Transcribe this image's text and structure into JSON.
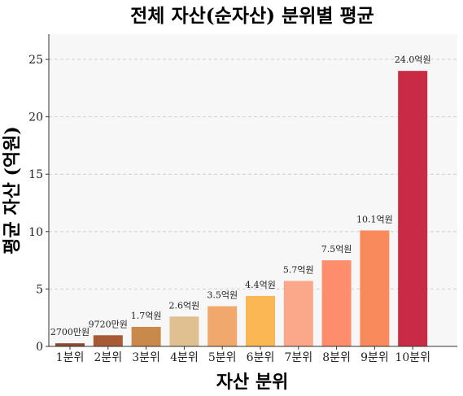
{
  "chart_data": {
    "type": "bar",
    "title": "전체 자산(순자산) 분위별 평균",
    "xlabel": "자산 분위",
    "ylabel": "평균 자산 (억원)",
    "categories": [
      "1분위",
      "2분위",
      "3분위",
      "4분위",
      "5분위",
      "6분위",
      "7분위",
      "8분위",
      "9분위",
      "10분위"
    ],
    "values": [
      0.27,
      0.972,
      1.7,
      2.6,
      3.5,
      4.4,
      5.7,
      7.5,
      10.1,
      24.0
    ],
    "data_labels": [
      "2700만원",
      "9720만원",
      "1.7억원",
      "2.6억원",
      "3.5억원",
      "4.4억원",
      "5.7억원",
      "7.5억원",
      "10.1억원",
      "24.0억원"
    ],
    "colors": [
      "#8b4a2b",
      "#a85a34",
      "#c9894a",
      "#dfc091",
      "#f0a86c",
      "#fbb753",
      "#fba88a",
      "#fc8d6d",
      "#f98a5c",
      "#c72b45"
    ],
    "ylim": [
      0,
      27.2
    ],
    "yticks": [
      0,
      5,
      10,
      15,
      20,
      25
    ],
    "grid": true,
    "plot_background": "#f7f7f7"
  }
}
